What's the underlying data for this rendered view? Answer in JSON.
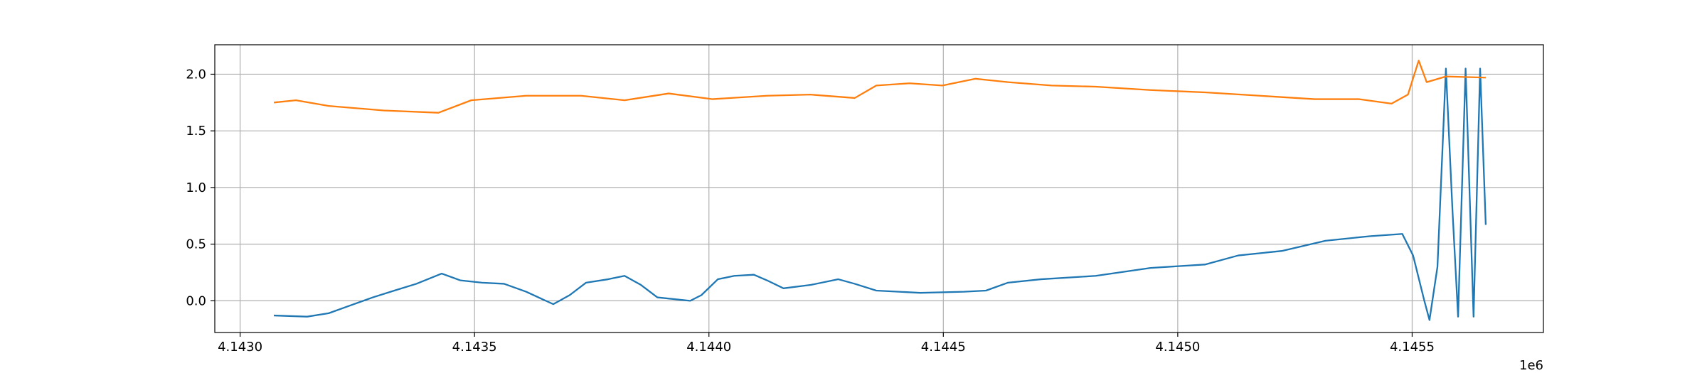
{
  "chart_data": {
    "type": "line",
    "xlim": [
      4142946,
      4145780
    ],
    "ylim": [
      -0.28,
      2.26
    ],
    "grid": true,
    "offset_text": "1e6",
    "xticks": [
      {
        "value": 4143000,
        "label": "4.1430"
      },
      {
        "value": 4143500,
        "label": "4.1435"
      },
      {
        "value": 4144000,
        "label": "4.1440"
      },
      {
        "value": 4144500,
        "label": "4.1445"
      },
      {
        "value": 4145000,
        "label": "4.1450"
      },
      {
        "value": 4145500,
        "label": "4.1455"
      }
    ],
    "yticks": [
      {
        "value": 0,
        "label": "0.0"
      },
      {
        "value": 0.5,
        "label": "0.5"
      },
      {
        "value": 1,
        "label": "1.0"
      },
      {
        "value": 1.5,
        "label": "1.5"
      },
      {
        "value": 2,
        "label": "2.0"
      }
    ],
    "series": [
      {
        "color": "#1f77b4",
        "x": [
          4143072,
          4143143,
          4143189,
          4143236,
          4143283,
          4143329,
          4143376,
          4143430,
          4143470,
          4143516,
          4143563,
          4143610,
          4143668,
          4143703,
          4143738,
          4143785,
          4143820,
          4143855,
          4143890,
          4143960,
          4143984,
          4144019,
          4144054,
          4144096,
          4144124,
          4144159,
          4144217,
          4144276,
          4144311,
          4144357,
          4144451,
          4144544,
          4144591,
          4144638,
          4144708,
          4144825,
          4144942,
          4145058,
          4145129,
          4145222,
          4145315,
          4145409,
          4145479,
          4145502,
          4145526,
          4145537,
          4145554,
          4145572,
          4145586,
          4145598,
          4145614,
          4145631,
          4145645,
          4145657
        ],
        "values": [
          -0.13,
          -0.14,
          -0.11,
          -0.04,
          0.03,
          0.09,
          0.15,
          0.24,
          0.18,
          0.16,
          0.15,
          0.08,
          -0.03,
          0.05,
          0.16,
          0.19,
          0.22,
          0.14,
          0.03,
          0.0,
          0.05,
          0.19,
          0.22,
          0.23,
          0.18,
          0.11,
          0.14,
          0.19,
          0.15,
          0.09,
          0.07,
          0.08,
          0.09,
          0.16,
          0.19,
          0.22,
          0.29,
          0.32,
          0.4,
          0.44,
          0.53,
          0.57,
          0.59,
          0.4,
          0.0,
          -0.17,
          0.3,
          2.05,
          0.8,
          -0.14,
          2.05,
          -0.14,
          2.05,
          0.67
        ]
      },
      {
        "color": "#ff7f0e",
        "x": [
          4143072,
          4143119,
          4143189,
          4143306,
          4143423,
          4143493,
          4143610,
          4143727,
          4143820,
          4143914,
          4144007,
          4144124,
          4144217,
          4144311,
          4144357,
          4144428,
          4144498,
          4144568,
          4144638,
          4144731,
          4144825,
          4144942,
          4145058,
          4145175,
          4145292,
          4145386,
          4145456,
          4145491,
          4145514,
          4145531,
          4145572,
          4145657
        ],
        "values": [
          1.75,
          1.77,
          1.72,
          1.68,
          1.66,
          1.77,
          1.81,
          1.81,
          1.77,
          1.83,
          1.78,
          1.81,
          1.82,
          1.79,
          1.9,
          1.92,
          1.9,
          1.96,
          1.93,
          1.9,
          1.89,
          1.86,
          1.84,
          1.81,
          1.78,
          1.78,
          1.74,
          1.82,
          2.12,
          1.93,
          1.98,
          1.97
        ]
      }
    ]
  }
}
